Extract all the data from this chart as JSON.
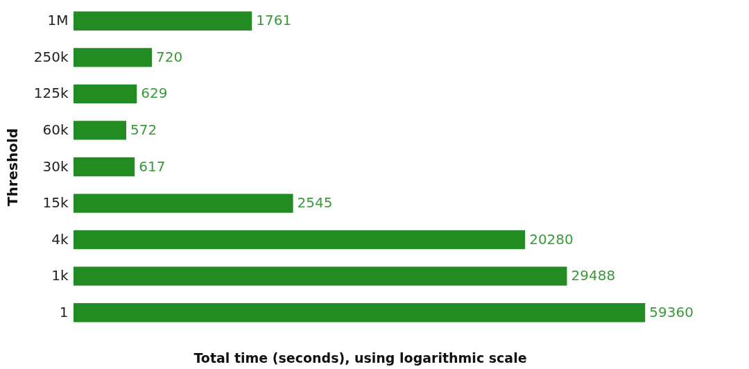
{
  "chart_data": {
    "type": "bar",
    "orientation": "horizontal",
    "xlabel": "Total time (seconds), using logarithmic scale",
    "ylabel": "Threshold",
    "categories": [
      "1M",
      "250k",
      "125k",
      "60k",
      "30k",
      "15k",
      "4k",
      "1k",
      "1"
    ],
    "values": [
      1761,
      720,
      629,
      572,
      617,
      2545,
      20280,
      29488,
      59360
    ],
    "color": "#228b22",
    "log": "x",
    "xlim": [
      357,
      60000
    ],
    "data_labels": true,
    "tick_labels": "y",
    "grid": false
  }
}
